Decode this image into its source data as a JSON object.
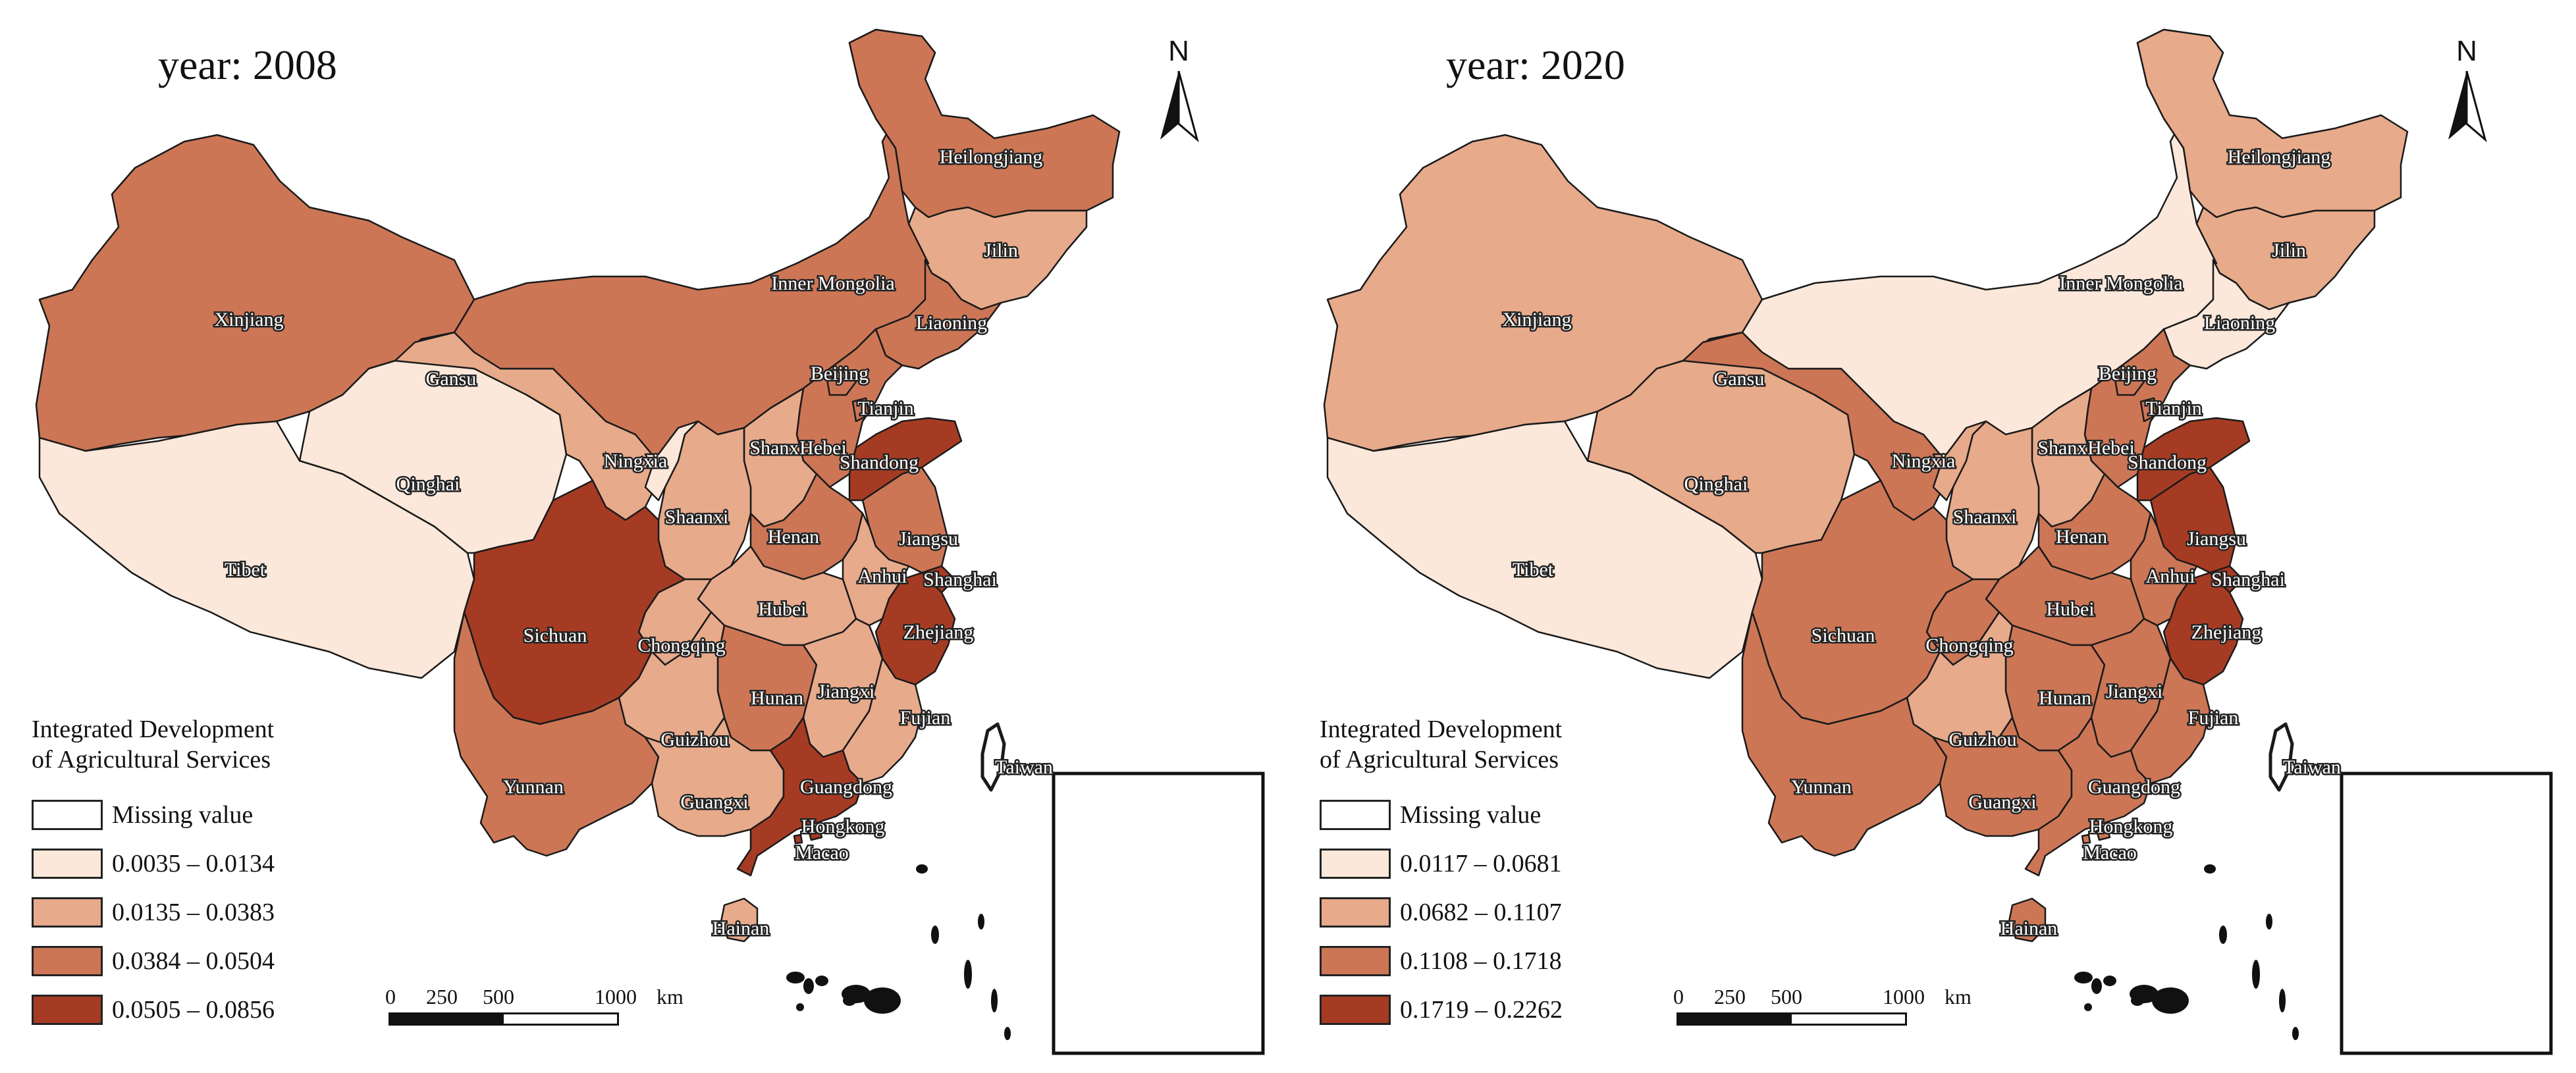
{
  "maps": [
    {
      "year_title": "year: 2008",
      "legend_title_line1": "Integrated Development",
      "legend_title_line2": "of Agricultural Services",
      "legend": [
        {
          "label": "Missing value",
          "color": "#ffffff"
        },
        {
          "label": "0.0035 – 0.0134",
          "color": "#fbe8da"
        },
        {
          "label": "0.0135 – 0.0383",
          "color": "#e7aa8b"
        },
        {
          "label": "0.0384 – 0.0504",
          "color": "#cc7656"
        },
        {
          "label": "0.0505 – 0.0856",
          "color": "#a63b24"
        }
      ],
      "provinces": {
        "Heilongjiang": 3,
        "Jilin": 2,
        "Liaoning": 3,
        "Inner Mongolia": 3,
        "Xinjiang": 3,
        "Gansu": 2,
        "Qinghai": 1,
        "Tibet": 1,
        "Ningxia": 1,
        "Shaanxi": 2,
        "Shanxi": 2,
        "Hebei": 3,
        "Beijing": 3,
        "Tianjin": 3,
        "Shandong": 4,
        "Henan": 3,
        "Jiangsu": 3,
        "Anhui": 2,
        "Shanghai": 4,
        "Zhejiang": 4,
        "Hubei": 2,
        "Sichuan": 4,
        "Chongqing": 2,
        "Hunan": 3,
        "Jiangxi": 2,
        "Fujian": 2,
        "Guizhou": 2,
        "Yunnan": 3,
        "Guangxi": 2,
        "Guangdong": 4,
        "Hongkong": 4,
        "Macao": 4,
        "Hainan": 2,
        "Taiwan": 0
      }
    },
    {
      "year_title": "year: 2020",
      "legend_title_line1": "Integrated Development",
      "legend_title_line2": "of Agricultural Services",
      "legend": [
        {
          "label": "Missing value",
          "color": "#ffffff"
        },
        {
          "label": "0.0117 – 0.0681",
          "color": "#fbe8da"
        },
        {
          "label": "0.0682 – 0.1107",
          "color": "#e7aa8b"
        },
        {
          "label": "0.1108 – 0.1718",
          "color": "#cc7656"
        },
        {
          "label": "0.1719 – 0.2262",
          "color": "#a63b24"
        }
      ],
      "provinces": {
        "Heilongjiang": 2,
        "Jilin": 2,
        "Liaoning": 1,
        "Inner Mongolia": 1,
        "Xinjiang": 2,
        "Gansu": 3,
        "Qinghai": 2,
        "Tibet": 1,
        "Ningxia": 2,
        "Shaanxi": 2,
        "Shanxi": 2,
        "Hebei": 3,
        "Beijing": 3,
        "Tianjin": 3,
        "Shandong": 4,
        "Henan": 3,
        "Jiangsu": 4,
        "Anhui": 3,
        "Shanghai": 4,
        "Zhejiang": 4,
        "Hubei": 3,
        "Sichuan": 3,
        "Chongqing": 3,
        "Hunan": 3,
        "Jiangxi": 3,
        "Fujian": 3,
        "Guizhou": 2,
        "Yunnan": 3,
        "Guangxi": 3,
        "Guangdong": 3,
        "Hongkong": 3,
        "Macao": 3,
        "Hainan": 3,
        "Taiwan": 0
      }
    }
  ],
  "scale_bar": {
    "ticks": [
      "0",
      "250",
      "500",
      "1000"
    ],
    "unit": "km"
  },
  "north_arrow": {
    "letter": "N",
    "icon": "north-arrow-icon"
  }
}
